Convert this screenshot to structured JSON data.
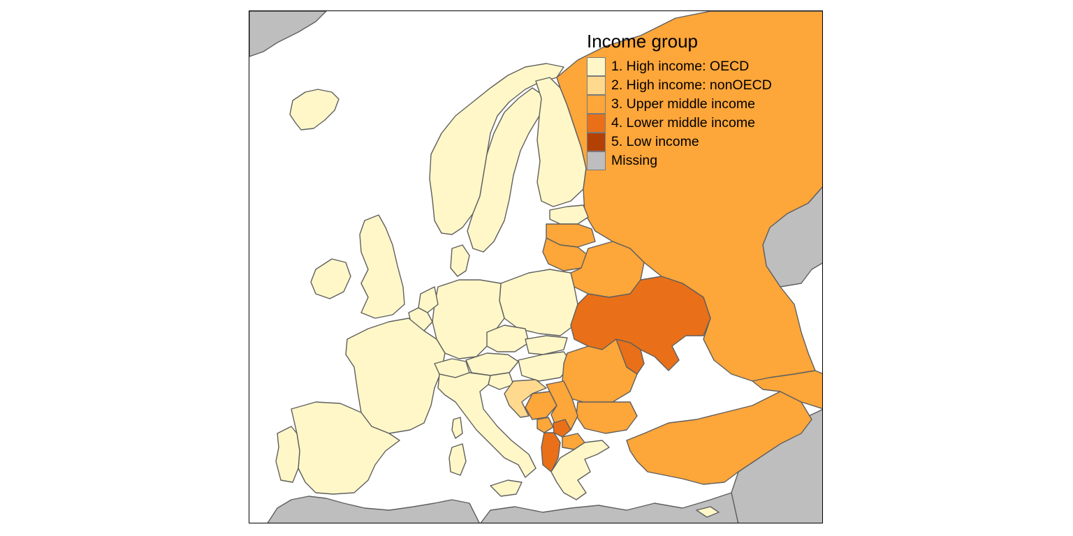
{
  "legend": {
    "title": "Income group",
    "items": [
      {
        "label": "1. High income: OECD",
        "color": "#fff7c8"
      },
      {
        "label": "2. High income: nonOECD",
        "color": "#fed98e"
      },
      {
        "label": "3. Upper middle income",
        "color": "#fda63a"
      },
      {
        "label": "4. Lower middle income",
        "color": "#e97018"
      },
      {
        "label": "5. Low income",
        "color": "#b34106"
      },
      {
        "label": "Missing",
        "color": "#bebebe"
      }
    ]
  },
  "colors": {
    "oecd": "#fff7c8",
    "nonoecd": "#fed98e",
    "upper_middle": "#fda63a",
    "lower_middle": "#e97018",
    "missing": "#bebebe",
    "border": "#5f5f5f",
    "frame": "#000000"
  }
}
